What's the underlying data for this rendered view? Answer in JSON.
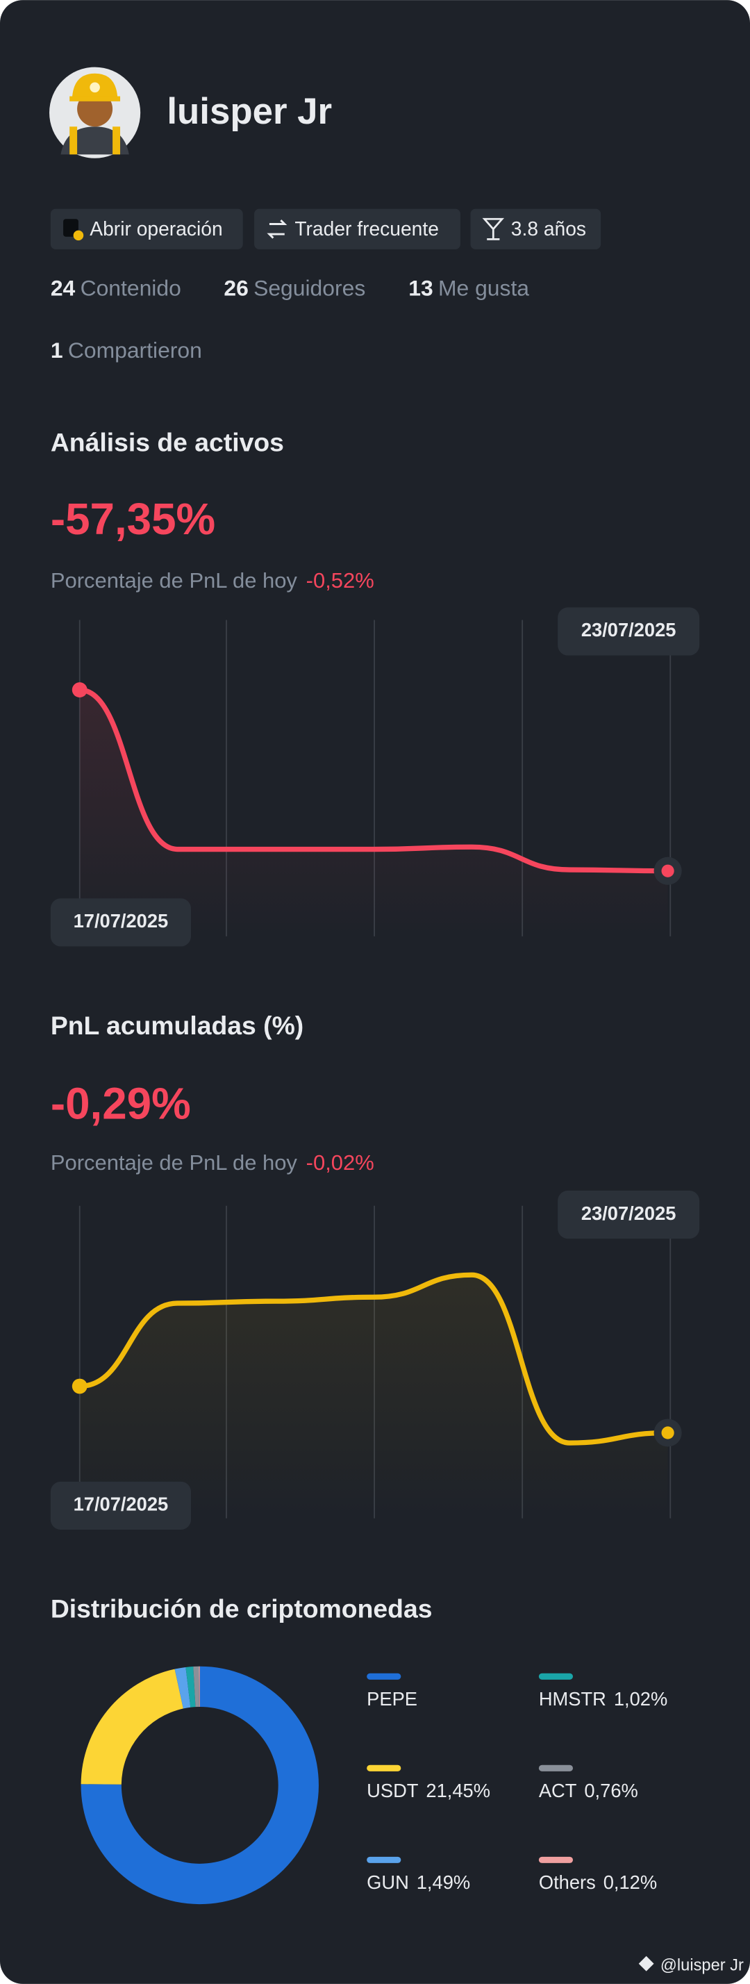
{
  "profile": {
    "name": "luisper Jr",
    "badges": [
      "Abrir operación",
      "Trader frecuente",
      "3.8 años"
    ],
    "stats": [
      {
        "value": 24,
        "label": "Contenido"
      },
      {
        "value": 26,
        "label": "Seguidores"
      },
      {
        "value": 13,
        "label": "Me gusta"
      },
      {
        "value": 1,
        "label": "Compartieron"
      }
    ]
  },
  "chart_data": [
    {
      "type": "line",
      "title": "Análisis de activos",
      "headline": "-57,35%",
      "subtitle": "Porcentaje de PnL de hoy",
      "subtitle_value": "-0,52%",
      "categories": [
        "17/07/2025",
        null,
        null,
        null,
        null,
        null,
        "23/07/2025"
      ],
      "values": [
        -49.4,
        -56.4,
        -56.4,
        -56.4,
        -56.3,
        -57.3,
        -57.35
      ],
      "color": "#f6465d",
      "ylim": [
        -58,
        -48
      ]
    },
    {
      "type": "line",
      "title": "PnL acumuladas (%)",
      "headline": "-0,29%",
      "subtitle": "Porcentaje de PnL de hoy",
      "subtitle_value": "-0,02%",
      "categories": [
        "17/07/2025",
        null,
        null,
        null,
        null,
        null,
        "23/07/2025"
      ],
      "values": [
        -0.06,
        0.35,
        0.36,
        0.38,
        0.49,
        -0.34,
        -0.29
      ],
      "color": "#f0b90b",
      "ylim": [
        -0.4,
        0.6
      ]
    },
    {
      "type": "pie",
      "title": "Distribución de criptomonedas",
      "categories": [
        "PEPE",
        "USDT",
        "GUN",
        "HMSTR",
        "ACT",
        "Others"
      ],
      "values": [
        75.16,
        21.45,
        1.49,
        1.02,
        0.76,
        0.12
      ],
      "value_labels": [
        null,
        "21,45%",
        "1,49%",
        "1,02%",
        "0,76%",
        "0,12%"
      ],
      "colors": [
        "#1f6fd8",
        "#fcd535",
        "#5aa3ec",
        "#1aa5a8",
        "#8a9099",
        "#f0a0a0"
      ]
    }
  ],
  "footer": "@luisper Jr"
}
